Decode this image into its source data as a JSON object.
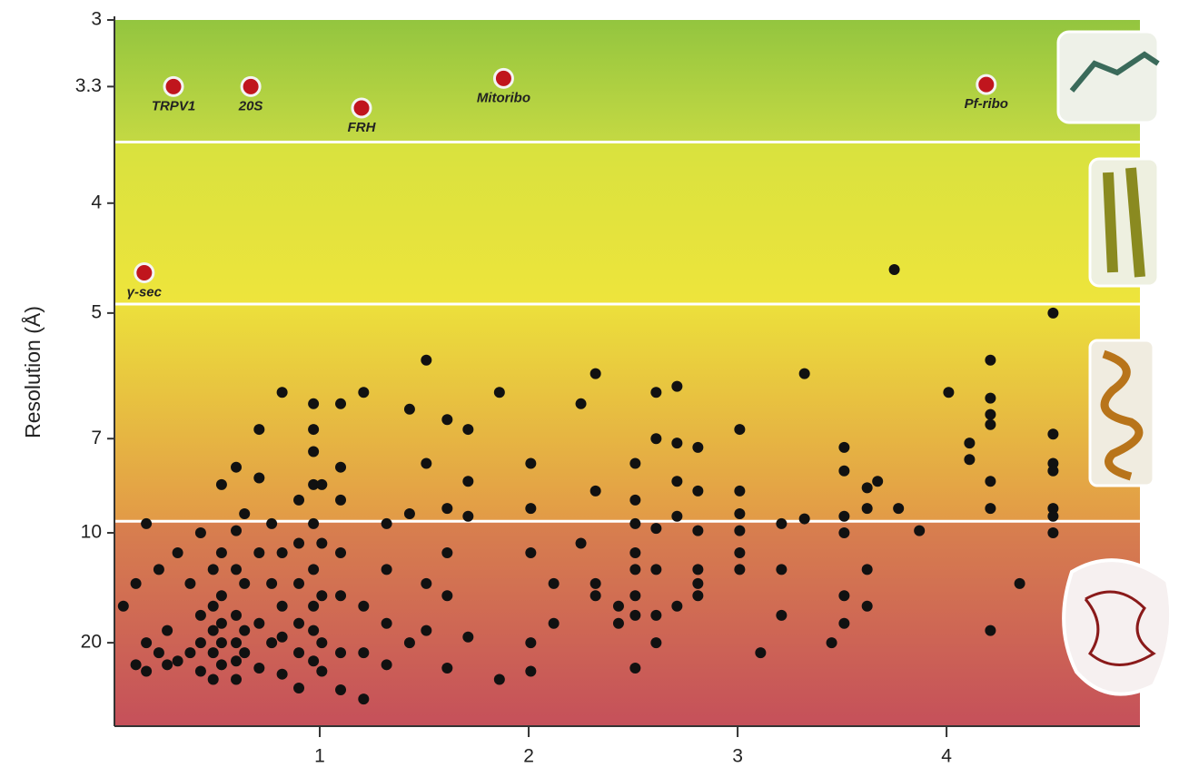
{
  "chart_data": {
    "type": "scatter",
    "y_label": "Resolution (Å)",
    "y_scale": "reciprocal",
    "xlim": [
      0,
      4.93
    ],
    "xticks": [
      1,
      2,
      3,
      4
    ],
    "ylim": [
      3,
      83
    ],
    "yticks": [
      3,
      3.3,
      4,
      5,
      7,
      10,
      20
    ],
    "bands": [
      {
        "from": 3,
        "to": 3.6,
        "colors": [
          "#93c53f",
          "#c4d943"
        ]
      },
      {
        "from": 3.6,
        "to": 4.9,
        "colors": [
          "#d8e23e",
          "#eee43c"
        ]
      },
      {
        "from": 4.9,
        "to": 9.5,
        "colors": [
          "#ece03b",
          "#e29a47"
        ]
      },
      {
        "from": 9.5,
        "to": 83,
        "colors": [
          "#d8804e",
          "#c5505a"
        ]
      }
    ],
    "series": [
      {
        "color": "#111111",
        "x": [
          0.06,
          0.12,
          0.12,
          0.17,
          0.17,
          0.17,
          0.23,
          0.23,
          0.27,
          0.27,
          0.32,
          0.32,
          0.38,
          0.38,
          0.43,
          0.43,
          0.43,
          0.43,
          0.49,
          0.49,
          0.49,
          0.49,
          0.49,
          0.53,
          0.53,
          0.53,
          0.53,
          0.53,
          0.53,
          0.6,
          0.6,
          0.6,
          0.6,
          0.6,
          0.6,
          0.6,
          0.64,
          0.64,
          0.64,
          0.64,
          0.71,
          0.71,
          0.71,
          0.71,
          0.71,
          0.77,
          0.77,
          0.77,
          0.82,
          0.82,
          0.82,
          0.82,
          0.82,
          0.9,
          0.9,
          0.9,
          0.9,
          0.9,
          0.9,
          0.97,
          0.97,
          0.97,
          0.97,
          0.97,
          0.97,
          0.97,
          0.97,
          0.97,
          1.01,
          1.01,
          1.01,
          1.01,
          1.01,
          1.1,
          1.1,
          1.1,
          1.1,
          1.1,
          1.1,
          1.1,
          1.21,
          1.21,
          1.21,
          1.21,
          1.32,
          1.32,
          1.32,
          1.32,
          1.43,
          1.43,
          1.43,
          1.51,
          1.51,
          1.51,
          1.51,
          1.61,
          1.61,
          1.61,
          1.61,
          1.61,
          1.71,
          1.71,
          1.71,
          1.71,
          1.86,
          1.86,
          2.01,
          2.01,
          2.01,
          2.01,
          2.01,
          2.12,
          2.12,
          2.25,
          2.25,
          2.32,
          2.32,
          2.32,
          2.32,
          2.43,
          2.43,
          2.51,
          2.51,
          2.51,
          2.51,
          2.51,
          2.51,
          2.51,
          2.51,
          2.61,
          2.61,
          2.61,
          2.61,
          2.61,
          2.61,
          2.71,
          2.71,
          2.71,
          2.71,
          2.71,
          2.81,
          2.81,
          2.81,
          2.81,
          2.81,
          2.81,
          3.01,
          3.01,
          3.01,
          3.01,
          3.01,
          3.01,
          3.11,
          3.21,
          3.21,
          3.21,
          3.32,
          3.32,
          3.45,
          3.51,
          3.51,
          3.51,
          3.51,
          3.51,
          3.51,
          3.62,
          3.62,
          3.62,
          3.62,
          3.67,
          3.75,
          3.77,
          3.87,
          4.01,
          4.11,
          4.11,
          4.21,
          4.21,
          4.21,
          4.21,
          4.21,
          4.21,
          4.21,
          4.35,
          4.51,
          4.51,
          4.51,
          4.51,
          4.51,
          4.51,
          4.51
        ],
        "values": [
          15,
          13,
          25,
          9.6,
          20,
          27,
          12,
          22,
          18,
          25,
          11,
          24,
          13,
          22,
          10,
          16,
          20,
          27,
          12,
          15,
          18,
          22,
          30,
          8.2,
          11,
          14,
          17,
          20,
          25,
          7.7,
          9.9,
          12,
          16,
          20,
          24,
          30,
          9.2,
          13,
          18,
          22,
          6.8,
          8,
          11,
          17,
          26,
          9.6,
          13,
          20,
          6.1,
          11,
          15,
          19,
          28,
          8.7,
          10.5,
          13,
          17,
          22,
          34,
          6.3,
          6.8,
          7.3,
          8.2,
          9.6,
          12,
          15,
          18,
          24,
          8.2,
          10.5,
          14,
          20,
          27,
          6.3,
          7.7,
          8.7,
          11,
          14,
          22,
          35,
          6.1,
          15,
          22,
          41,
          9.6,
          12,
          17,
          25,
          6.4,
          9.2,
          20,
          5.6,
          7.6,
          13,
          18,
          6.6,
          9,
          11,
          14,
          26,
          6.8,
          8.1,
          9.3,
          19,
          6.1,
          30,
          7.6,
          9,
          11,
          20,
          27,
          13,
          17,
          6.3,
          10.5,
          5.8,
          8.4,
          13,
          14,
          15,
          17,
          7.6,
          8.7,
          9.6,
          11,
          12,
          14,
          16,
          26,
          6.1,
          7,
          9.8,
          12,
          16,
          20,
          6,
          7.1,
          8.1,
          9.3,
          15,
          7.2,
          8.4,
          9.9,
          12,
          13,
          14,
          6.8,
          8.4,
          9.2,
          9.9,
          11,
          12,
          22,
          9.6,
          12,
          16,
          5.8,
          9.4,
          20,
          7.2,
          7.8,
          9.3,
          10,
          14,
          17,
          8.3,
          9,
          12,
          15,
          8.1,
          4.55,
          9,
          9.9,
          6.1,
          7.1,
          7.5,
          5.6,
          6.2,
          6.5,
          6.7,
          8.1,
          9,
          18,
          13,
          5,
          6.9,
          7.6,
          7.8,
          9,
          9.3,
          10
        ]
      },
      {
        "color": "#c0151d",
        "labels": [
          "TRPV1",
          "20S",
          "FRH",
          "Mitoribo",
          "Pf-ribo",
          "γ-sec"
        ],
        "x": [
          0.3,
          0.67,
          1.2,
          1.88,
          4.19,
          0.16
        ],
        "values": [
          3.3,
          3.3,
          3.41,
          3.26,
          3.29,
          4.58
        ]
      }
    ]
  }
}
